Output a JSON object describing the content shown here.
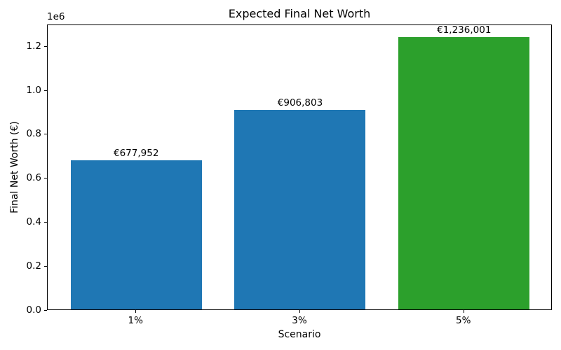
{
  "chart_data": {
    "type": "bar",
    "title": "Expected Final Net Worth",
    "xlabel": "Scenario",
    "ylabel": "Final Net Worth (€)",
    "categories": [
      "1%",
      "3%",
      "5%"
    ],
    "values": [
      677952,
      906803,
      1236001
    ],
    "bar_labels": [
      "€677,952",
      "€906,803",
      "€1,236,001"
    ],
    "bar_colors": [
      "#1f77b4",
      "#1f77b4",
      "#2ca02c"
    ],
    "bar_width_units": 0.8,
    "xlim": [
      -0.54,
      2.54
    ],
    "ylim": [
      0,
      1297801
    ],
    "yticks": [
      0,
      200000,
      400000,
      600000,
      800000,
      1000000,
      1200000
    ],
    "ytick_labels": [
      "0.0",
      "0.2",
      "0.4",
      "0.6",
      "0.8",
      "1.0",
      "1.2"
    ],
    "y_offset_text": "1e6",
    "grid": false,
    "legend": null,
    "spine_color": "#000000",
    "background_color": "#ffffff"
  }
}
